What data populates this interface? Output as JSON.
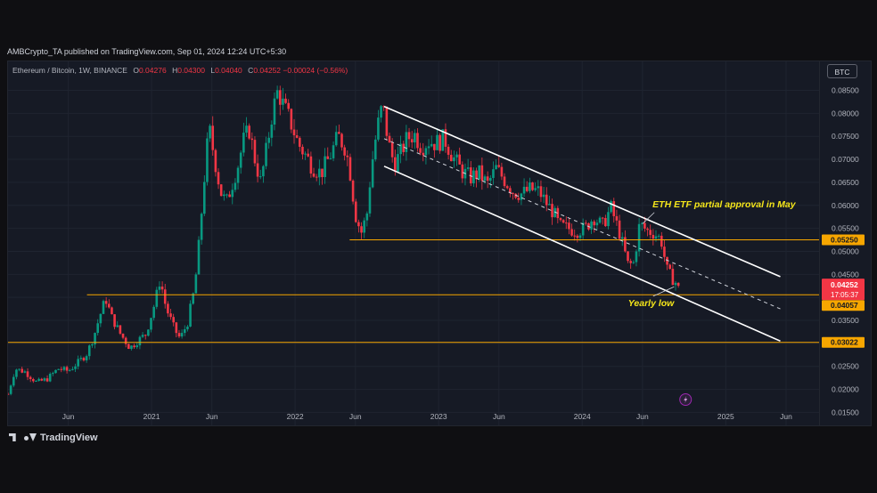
{
  "published": "AMBCrypto_TA published on TradingView.com, Sep 01, 2024 12:24 UTC+5:30",
  "legend": {
    "symbol": "Ethereum / Bitcoin, 1W, BINANCE",
    "o_label": "O",
    "o_value": "0.04276",
    "h_label": "H",
    "h_value": "0.04300",
    "l_label": "L",
    "l_value": "0.04040",
    "c_label": "C",
    "c_value": "0.04252",
    "change": "−0.00024 (−0.56%)"
  },
  "currency_button": "BTC",
  "brand": "TradingView",
  "colors": {
    "up": "#089981",
    "down": "#f23645",
    "level": "#f7a600",
    "channel": "#ffffff",
    "annotation": "#f5e61a",
    "price_tag": "#f23645",
    "level_tag": "#f7a600",
    "background": "#161a25"
  },
  "chart_data": {
    "type": "candlestick",
    "symbol": "Ethereum / Bitcoin",
    "interval": "1W",
    "exchange": "BINANCE",
    "y_axis": {
      "ticks": [
        "0.01500",
        "0.02000",
        "0.02500",
        "0.03000",
        "0.03500",
        "0.04000",
        "0.04500",
        "0.05000",
        "0.05500",
        "0.06000",
        "0.06500",
        "0.07000",
        "0.07500",
        "0.08000",
        "0.08500"
      ],
      "range": [
        0.0145,
        0.088
      ]
    },
    "x_axis": {
      "ticks": [
        {
          "label": "Jun",
          "t": 2020.42
        },
        {
          "label": "2021",
          "t": 2021.0
        },
        {
          "label": "Jun",
          "t": 2021.42
        },
        {
          "label": "2022",
          "t": 2022.0
        },
        {
          "label": "Jun",
          "t": 2022.42
        },
        {
          "label": "2023",
          "t": 2023.0
        },
        {
          "label": "Jun",
          "t": 2023.42
        },
        {
          "label": "2024",
          "t": 2024.0
        },
        {
          "label": "Jun",
          "t": 2024.42
        },
        {
          "label": "2025",
          "t": 2025.0
        },
        {
          "label": "Jun",
          "t": 2025.42
        }
      ],
      "range": [
        2020.0,
        2025.65
      ]
    },
    "series": [
      {
        "t": 2020.0,
        "close": 0.019
      },
      {
        "t": 2020.05,
        "close": 0.0245
      },
      {
        "t": 2020.12,
        "close": 0.0238
      },
      {
        "t": 2020.2,
        "close": 0.0215
      },
      {
        "t": 2020.27,
        "close": 0.0222
      },
      {
        "t": 2020.35,
        "close": 0.0245
      },
      {
        "t": 2020.42,
        "close": 0.024
      },
      {
        "t": 2020.5,
        "close": 0.0262
      },
      {
        "t": 2020.55,
        "close": 0.0278
      },
      {
        "t": 2020.6,
        "close": 0.0318
      },
      {
        "t": 2020.64,
        "close": 0.036
      },
      {
        "t": 2020.68,
        "close": 0.0398
      },
      {
        "t": 2020.72,
        "close": 0.0358
      },
      {
        "t": 2020.78,
        "close": 0.0322
      },
      {
        "t": 2020.85,
        "close": 0.029
      },
      {
        "t": 2020.9,
        "close": 0.0305
      },
      {
        "t": 2020.96,
        "close": 0.032
      },
      {
        "t": 2021.02,
        "close": 0.0385
      },
      {
        "t": 2021.06,
        "close": 0.044
      },
      {
        "t": 2021.1,
        "close": 0.0378
      },
      {
        "t": 2021.16,
        "close": 0.033
      },
      {
        "t": 2021.2,
        "close": 0.031
      },
      {
        "t": 2021.25,
        "close": 0.0345
      },
      {
        "t": 2021.3,
        "close": 0.042
      },
      {
        "t": 2021.33,
        "close": 0.0515
      },
      {
        "t": 2021.37,
        "close": 0.067
      },
      {
        "t": 2021.4,
        "close": 0.077
      },
      {
        "t": 2021.44,
        "close": 0.07
      },
      {
        "t": 2021.48,
        "close": 0.063
      },
      {
        "t": 2021.52,
        "close": 0.0605
      },
      {
        "t": 2021.56,
        "close": 0.0645
      },
      {
        "t": 2021.6,
        "close": 0.0685
      },
      {
        "t": 2021.64,
        "close": 0.074
      },
      {
        "t": 2021.68,
        "close": 0.0765
      },
      {
        "t": 2021.72,
        "close": 0.07
      },
      {
        "t": 2021.76,
        "close": 0.065
      },
      {
        "t": 2021.8,
        "close": 0.072
      },
      {
        "t": 2021.84,
        "close": 0.08
      },
      {
        "t": 2021.88,
        "close": 0.085
      },
      {
        "t": 2021.92,
        "close": 0.0815
      },
      {
        "t": 2021.97,
        "close": 0.078
      },
      {
        "t": 2022.02,
        "close": 0.0735
      },
      {
        "t": 2022.07,
        "close": 0.071
      },
      {
        "t": 2022.12,
        "close": 0.0685
      },
      {
        "t": 2022.18,
        "close": 0.067
      },
      {
        "t": 2022.24,
        "close": 0.0705
      },
      {
        "t": 2022.3,
        "close": 0.075
      },
      {
        "t": 2022.35,
        "close": 0.0725
      },
      {
        "t": 2022.38,
        "close": 0.068
      },
      {
        "t": 2022.42,
        "close": 0.058
      },
      {
        "t": 2022.46,
        "close": 0.054
      },
      {
        "t": 2022.5,
        "close": 0.058
      },
      {
        "t": 2022.53,
        "close": 0.068
      },
      {
        "t": 2022.57,
        "close": 0.0765
      },
      {
        "t": 2022.61,
        "close": 0.082
      },
      {
        "t": 2022.65,
        "close": 0.0735
      },
      {
        "t": 2022.69,
        "close": 0.069
      },
      {
        "t": 2022.73,
        "close": 0.071
      },
      {
        "t": 2022.78,
        "close": 0.0745
      },
      {
        "t": 2022.83,
        "close": 0.0755
      },
      {
        "t": 2022.88,
        "close": 0.0728
      },
      {
        "t": 2022.93,
        "close": 0.074
      },
      {
        "t": 2022.98,
        "close": 0.0735
      },
      {
        "t": 2023.04,
        "close": 0.0745
      },
      {
        "t": 2023.1,
        "close": 0.0705
      },
      {
        "t": 2023.16,
        "close": 0.0675
      },
      {
        "t": 2023.22,
        "close": 0.066
      },
      {
        "t": 2023.28,
        "close": 0.067
      },
      {
        "t": 2023.34,
        "close": 0.0645
      },
      {
        "t": 2023.4,
        "close": 0.068
      },
      {
        "t": 2023.46,
        "close": 0.0655
      },
      {
        "t": 2023.52,
        "close": 0.063
      },
      {
        "t": 2023.58,
        "close": 0.0625
      },
      {
        "t": 2023.64,
        "close": 0.0635
      },
      {
        "t": 2023.7,
        "close": 0.063
      },
      {
        "t": 2023.76,
        "close": 0.06
      },
      {
        "t": 2023.8,
        "close": 0.0585
      },
      {
        "t": 2023.84,
        "close": 0.0555
      },
      {
        "t": 2023.9,
        "close": 0.055
      },
      {
        "t": 2023.96,
        "close": 0.0545
      },
      {
        "t": 2024.02,
        "close": 0.055
      },
      {
        "t": 2024.08,
        "close": 0.0575
      },
      {
        "t": 2024.14,
        "close": 0.0555
      },
      {
        "t": 2024.2,
        "close": 0.0595
      },
      {
        "t": 2024.26,
        "close": 0.054
      },
      {
        "t": 2024.32,
        "close": 0.047
      },
      {
        "t": 2024.36,
        "close": 0.0475
      },
      {
        "t": 2024.4,
        "close": 0.056
      },
      {
        "t": 2024.45,
        "close": 0.0545
      },
      {
        "t": 2024.5,
        "close": 0.054
      },
      {
        "t": 2024.55,
        "close": 0.0525
      },
      {
        "t": 2024.59,
        "close": 0.046
      },
      {
        "t": 2024.63,
        "close": 0.044
      },
      {
        "t": 2024.67,
        "close": 0.0425
      }
    ],
    "levels": [
      {
        "price": 0.0525,
        "label": "0.05250",
        "t_start": 2022.38
      },
      {
        "price": 0.04057,
        "label": "0.04057",
        "t_start": 2020.55
      },
      {
        "price": 0.03022,
        "label": "0.03022",
        "t_start": 2020.0
      }
    ],
    "current_price": {
      "label": "0.04252",
      "countdown": "17:05:37",
      "price": 0.04252
    },
    "channel": {
      "upper": [
        [
          2022.62,
          0.0815
        ],
        [
          2025.38,
          0.0445
        ]
      ],
      "mid": [
        [
          2022.62,
          0.0745
        ],
        [
          2025.38,
          0.0375
        ]
      ],
      "lower": [
        [
          2022.62,
          0.0685
        ],
        [
          2025.38,
          0.0305
        ]
      ]
    },
    "annotations": [
      {
        "text": "ETH ETF partial approval in May",
        "t": 2024.49,
        "price": 0.06
      },
      {
        "text": "Yearly low",
        "t": 2024.32,
        "price": 0.0387
      }
    ]
  }
}
